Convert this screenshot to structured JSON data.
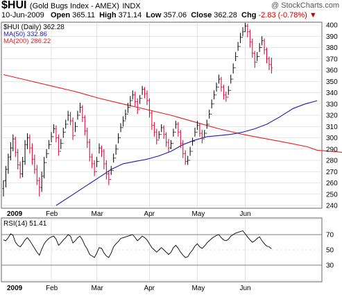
{
  "header": {
    "symbol": "$HUI",
    "name": "(Gold Bugs Index - AMEX)",
    "exchange": "INDX",
    "copyright": "@ StockCharts.com",
    "date": "10-Jun-2009",
    "open_label": "Open",
    "open": "365.11",
    "high_label": "High",
    "high": "371.14",
    "low_label": "Low",
    "low": "357.06",
    "close_label": "Close",
    "close": "362.28",
    "chg_label": "Chg",
    "chg": "-2.83 (-0.78%)",
    "chg_arrow": "▼"
  },
  "legend": {
    "main": "$HUI (Daily) 362.28",
    "ma50": "MA(50) 332.86",
    "ma200": "MA(200) 286.22",
    "rsi": "RSI(14) 51.41"
  },
  "colors": {
    "price": "#000000",
    "down": "#cc0033",
    "ma50": "#1a1aa6",
    "ma200": "#e02020",
    "grid": "#d0d0d0",
    "rsi": "#000000"
  },
  "chart_data": [
    {
      "type": "line",
      "subtype": "ohlc",
      "series_name": "$HUI (Daily)",
      "ylim": [
        240,
        400
      ],
      "yticks": [
        240,
        250,
        260,
        270,
        280,
        290,
        300,
        310,
        320,
        330,
        340,
        350,
        360,
        370,
        380,
        390,
        400
      ],
      "xticks": [
        {
          "label": "2009",
          "i": 0
        },
        {
          "label": "Feb",
          "i": 20
        },
        {
          "label": "Mar",
          "i": 39
        },
        {
          "label": "Apr",
          "i": 61
        },
        {
          "label": "May",
          "i": 81
        },
        {
          "label": "Jun",
          "i": 101
        }
      ],
      "bars": [
        [
          262,
          255,
          262,
          248
        ],
        [
          272,
          262,
          275,
          256
        ],
        [
          283,
          272,
          286,
          268
        ],
        [
          291,
          283,
          296,
          280
        ],
        [
          299,
          291,
          303,
          288
        ],
        [
          287,
          299,
          301,
          283
        ],
        [
          276,
          287,
          290,
          272
        ],
        [
          268,
          276,
          279,
          264
        ],
        [
          279,
          268,
          283,
          265
        ],
        [
          294,
          279,
          298,
          276
        ],
        [
          300,
          294,
          304,
          290
        ],
        [
          291,
          300,
          303,
          286
        ],
        [
          281,
          291,
          295,
          276
        ],
        [
          272,
          281,
          285,
          268
        ],
        [
          262,
          272,
          276,
          258
        ],
        [
          256,
          262,
          265,
          248
        ],
        [
          266,
          256,
          270,
          252
        ],
        [
          278,
          266,
          283,
          264
        ],
        [
          286,
          278,
          290,
          282
        ],
        [
          294,
          286,
          298,
          290
        ],
        [
          301,
          294,
          305,
          296
        ],
        [
          308,
          301,
          312,
          304
        ],
        [
          300,
          308,
          311,
          296
        ],
        [
          288,
          300,
          303,
          284
        ],
        [
          295,
          288,
          299,
          290
        ],
        [
          305,
          295,
          309,
          300
        ],
        [
          312,
          305,
          316,
          308
        ],
        [
          320,
          312,
          324,
          315
        ],
        [
          315,
          320,
          323,
          311
        ],
        [
          302,
          315,
          318,
          298
        ],
        [
          310,
          302,
          314,
          305
        ],
        [
          320,
          310,
          324,
          316
        ],
        [
          327,
          320,
          331,
          322
        ],
        [
          318,
          327,
          329,
          314
        ],
        [
          306,
          318,
          320,
          302
        ],
        [
          296,
          306,
          309,
          291
        ],
        [
          283,
          296,
          299,
          279
        ],
        [
          277,
          283,
          286,
          273
        ],
        [
          270,
          277,
          280,
          266
        ],
        [
          279,
          270,
          283,
          274
        ],
        [
          291,
          279,
          295,
          286
        ],
        [
          288,
          291,
          293,
          283
        ],
        [
          277,
          288,
          290,
          272
        ],
        [
          268,
          277,
          280,
          263
        ],
        [
          263,
          268,
          271,
          258
        ],
        [
          271,
          263,
          275,
          267
        ],
        [
          282,
          271,
          286,
          278
        ],
        [
          290,
          282,
          294,
          285
        ],
        [
          300,
          290,
          304,
          295
        ],
        [
          309,
          300,
          313,
          305
        ],
        [
          315,
          309,
          319,
          310
        ],
        [
          321,
          315,
          325,
          316
        ],
        [
          327,
          321,
          331,
          322
        ],
        [
          333,
          327,
          337,
          328
        ],
        [
          338,
          333,
          342,
          334
        ],
        [
          332,
          338,
          341,
          328
        ],
        [
          325,
          332,
          335,
          321
        ],
        [
          335,
          325,
          338,
          330
        ],
        [
          343,
          335,
          346,
          338
        ],
        [
          339,
          343,
          345,
          335
        ],
        [
          333,
          339,
          342,
          329
        ],
        [
          322,
          333,
          335,
          318
        ],
        [
          311,
          322,
          324,
          307
        ],
        [
          305,
          311,
          314,
          301
        ],
        [
          298,
          305,
          308,
          294
        ],
        [
          303,
          298,
          306,
          299
        ],
        [
          309,
          303,
          312,
          305
        ],
        [
          303,
          309,
          311,
          299
        ],
        [
          296,
          303,
          305,
          292
        ],
        [
          291,
          296,
          299,
          287
        ],
        [
          295,
          291,
          298,
          290
        ],
        [
          305,
          295,
          308,
          301
        ],
        [
          312,
          305,
          315,
          308
        ],
        [
          305,
          312,
          314,
          301
        ],
        [
          295,
          305,
          307,
          291
        ],
        [
          286,
          295,
          298,
          282
        ],
        [
          279,
          286,
          289,
          276
        ],
        [
          280,
          279,
          284,
          276
        ],
        [
          288,
          280,
          292,
          284
        ],
        [
          297,
          288,
          300,
          293
        ],
        [
          305,
          297,
          309,
          301
        ],
        [
          311,
          305,
          315,
          307
        ],
        [
          304,
          311,
          313,
          301
        ],
        [
          299,
          304,
          307,
          295
        ],
        [
          304,
          299,
          307,
          300
        ],
        [
          312,
          304,
          316,
          308
        ],
        [
          321,
          312,
          325,
          317
        ],
        [
          330,
          321,
          334,
          326
        ],
        [
          338,
          330,
          342,
          334
        ],
        [
          345,
          338,
          349,
          341
        ],
        [
          352,
          345,
          356,
          348
        ],
        [
          345,
          352,
          354,
          341
        ],
        [
          338,
          345,
          347,
          334
        ],
        [
          336,
          338,
          341,
          332
        ],
        [
          342,
          336,
          346,
          338
        ],
        [
          352,
          342,
          356,
          348
        ],
        [
          362,
          352,
          366,
          357
        ],
        [
          372,
          362,
          376,
          368
        ],
        [
          381,
          372,
          385,
          377
        ],
        [
          389,
          381,
          393,
          384
        ],
        [
          394,
          389,
          398,
          390
        ],
        [
          399,
          394,
          402,
          394
        ],
        [
          394,
          399,
          401,
          389
        ],
        [
          385,
          394,
          396,
          380
        ],
        [
          375,
          385,
          388,
          371
        ],
        [
          367,
          375,
          377,
          362
        ],
        [
          372,
          367,
          376,
          368
        ],
        [
          380,
          372,
          384,
          376
        ],
        [
          386,
          380,
          390,
          382
        ],
        [
          378,
          386,
          388,
          374
        ],
        [
          370,
          378,
          380,
          366
        ],
        [
          365,
          370,
          372,
          360
        ],
        [
          362,
          365,
          371,
          357
        ]
      ],
      "ma50": [
        [
          22,
          240
        ],
        [
          30,
          251
        ],
        [
          40,
          265
        ],
        [
          45,
          272
        ],
        [
          50,
          277
        ],
        [
          55,
          279
        ],
        [
          60,
          281
        ],
        [
          65,
          284
        ],
        [
          70,
          288
        ],
        [
          75,
          294
        ],
        [
          80,
          298
        ],
        [
          85,
          301
        ],
        [
          90,
          302
        ],
        [
          95,
          303
        ],
        [
          100,
          305
        ],
        [
          105,
          308
        ],
        [
          110,
          312
        ],
        [
          115,
          318
        ],
        [
          121,
          326
        ],
        [
          126,
          330
        ],
        [
          131,
          332.86
        ]
      ],
      "ma200": [
        [
          0,
          356
        ],
        [
          10,
          351
        ],
        [
          20,
          346
        ],
        [
          30,
          341
        ],
        [
          40,
          335
        ],
        [
          50,
          330
        ],
        [
          60,
          325
        ],
        [
          70,
          320
        ],
        [
          80,
          314
        ],
        [
          90,
          308
        ],
        [
          100,
          303
        ],
        [
          110,
          299
        ],
        [
          120,
          295
        ],
        [
          127,
          292
        ],
        [
          131,
          289
        ],
        [
          137,
          288
        ],
        [
          142,
          287
        ],
        [
          149,
          286.22
        ]
      ]
    },
    {
      "type": "line",
      "series_name": "RSI(14)",
      "ylim": [
        10,
        90
      ],
      "yticks": [
        10,
        30,
        50,
        70,
        90
      ],
      "xticks": [
        "2009",
        "Feb",
        "Mar",
        "Apr",
        "May",
        "Jun"
      ],
      "values": [
        63,
        62,
        66,
        71,
        69,
        60,
        56,
        54,
        58,
        63,
        66,
        62,
        57,
        52,
        47,
        43,
        51,
        58,
        62,
        65,
        67,
        68,
        64,
        56,
        59,
        63,
        66,
        70,
        68,
        59,
        62,
        66,
        68,
        63,
        56,
        51,
        44,
        42,
        40,
        46,
        53,
        52,
        46,
        42,
        40,
        46,
        54,
        58,
        61,
        65,
        66,
        67,
        68,
        69,
        70,
        66,
        62,
        65,
        68,
        66,
        63,
        58,
        53,
        50,
        47,
        50,
        53,
        50,
        47,
        44,
        47,
        53,
        56,
        52,
        47,
        43,
        40,
        41,
        46,
        50,
        55,
        58,
        54,
        52,
        55,
        59,
        62,
        65,
        67,
        69,
        70,
        66,
        63,
        62,
        64,
        68,
        70,
        72,
        73,
        74,
        75,
        71,
        67,
        63,
        60,
        62,
        65,
        67,
        62,
        58,
        55,
        54,
        51.41
      ]
    }
  ]
}
